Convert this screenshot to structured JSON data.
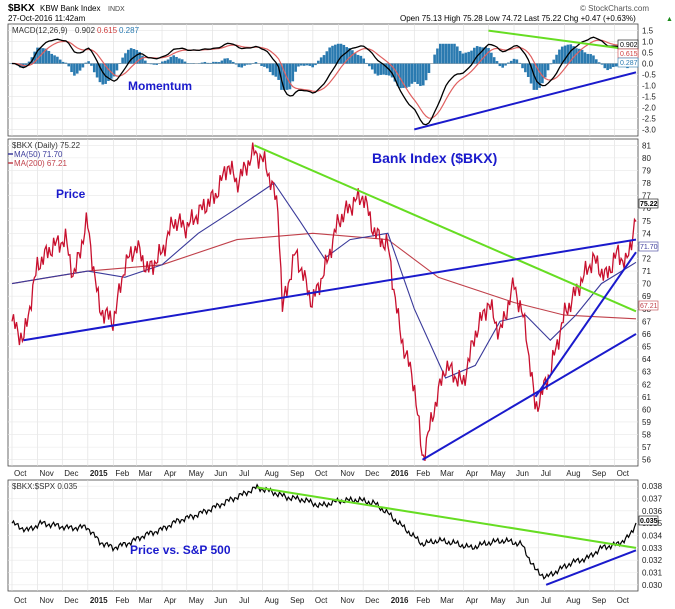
{
  "header": {
    "symbol": "$BKX",
    "name": "KBW Bank Index",
    "exchange": "INDX",
    "date": "27-Oct-2016 11:42am",
    "ohlc": "Open 75.13  High 75.28  Low 74.72  Last 75.22  Chg +0.47 (+0.63%)",
    "ohlc_up": "▲",
    "brand": "© StockCharts.com"
  },
  "macd_panel": {
    "legend": "MACD(12,26,9)",
    "legend_values": [
      "0.902",
      "0.615",
      "0.287"
    ],
    "annotation": "Momentum",
    "y_ticks": [
      "1.5",
      "1.0",
      "0.5",
      "0.0",
      "-0.5",
      "-1.0",
      "-1.5",
      "-2.0",
      "-2.5",
      "-3.0"
    ],
    "last_labels": [
      "0.902",
      "0.615",
      "0.287"
    ]
  },
  "price_panel": {
    "legend": "$BKX (Daily) 75.22",
    "ma50_legend": "MA(50) 71.70",
    "ma200_legend": "MA(200) 67.21",
    "title": "Bank Index ($BKX)",
    "annotation": "Price",
    "y_ticks": [
      "81",
      "80",
      "79",
      "78",
      "77",
      "76",
      "75",
      "74",
      "73",
      "72",
      "71",
      "70",
      "69",
      "68",
      "67",
      "66",
      "65",
      "64",
      "63",
      "62",
      "61",
      "60",
      "59",
      "58",
      "57",
      "56"
    ],
    "last_labels": [
      "75.22",
      "71.70",
      "67.21"
    ]
  },
  "ratio_panel": {
    "legend": "$BKX:$SPX 0.035",
    "annotation": "Price vs. S&P 500",
    "y_ticks": [
      "0.038",
      "0.037",
      "0.036",
      "0.035",
      "0.034",
      "0.033",
      "0.032",
      "0.031",
      "0.030"
    ],
    "last_label": "0.035"
  },
  "x_axis": {
    "ticks": [
      "Oct",
      "Nov",
      "Dec",
      "2015",
      "Feb",
      "Mar",
      "Apr",
      "May",
      "Jun",
      "Jul",
      "Aug",
      "Sep",
      "Oct",
      "Nov",
      "Dec",
      "2016",
      "Feb",
      "Mar",
      "Apr",
      "May",
      "Jun",
      "Jul",
      "Aug",
      "Sep",
      "Oct"
    ]
  },
  "colors": {
    "price": "#c8102e",
    "ma50": "#3a3a9a",
    "ma200": "#c0404a",
    "macd": "#000000",
    "signal": "#e06060",
    "histogram": "#2a7ab0",
    "trend_green": "#66dd22",
    "trend_blue": "#1a1acc",
    "title_blue": "#1a1acc"
  },
  "chart_data": [
    {
      "type": "line",
      "y_ticks_shown": [
        1.5,
        1.0,
        0.5,
        0.0,
        -0.5,
        -1.0,
        -1.5,
        -2.0,
        -2.5,
        -3.0
      ],
      "ylim": [
        -3.3,
        1.8
      ],
      "series": [
        {
          "name": "MACD(12,26,9)",
          "last": 0.902
        },
        {
          "name": "",
          "last": 0.615
        },
        {
          "name": "",
          "last": 0.287
        }
      ],
      "annotations": [
        "Momentum"
      ],
      "trendlines": [
        {
          "color": "green",
          "from": [
            "2016-05",
            1.5
          ],
          "to": [
            "2016-10-27",
            0.6
          ]
        },
        {
          "color": "blue",
          "from": [
            "2016-02",
            -3.0
          ],
          "to": [
            "2016-10-27",
            -0.4
          ]
        }
      ]
    },
    {
      "type": "line",
      "title": "Bank Index ($BKX)",
      "ylim": [
        55.5,
        81.5
      ],
      "series": [
        {
          "name": "$BKX (Daily)",
          "last": 75.22,
          "points": [
            [
              "2014-10-01",
              67.0
            ],
            [
              "2014-10-15",
              65.5
            ],
            [
              "2014-11-01",
              71.5
            ],
            [
              "2014-11-20",
              73.0
            ],
            [
              "2014-12-05",
              73.5
            ],
            [
              "2014-12-15",
              70.5
            ],
            [
              "2014-12-31",
              75.0
            ],
            [
              "2015-01-15",
              68.0
            ],
            [
              "2015-02-01",
              67.0
            ],
            [
              "2015-02-15",
              71.5
            ],
            [
              "2015-03-01",
              73.0
            ],
            [
              "2015-03-15",
              71.0
            ],
            [
              "2015-04-01",
              72.5
            ],
            [
              "2015-04-15",
              75.0
            ],
            [
              "2015-05-01",
              74.5
            ],
            [
              "2015-05-20",
              76.0
            ],
            [
              "2015-06-05",
              77.0
            ],
            [
              "2015-06-20",
              79.5
            ],
            [
              "2015-07-01",
              78.0
            ],
            [
              "2015-07-22",
              80.5
            ],
            [
              "2015-08-05",
              79.5
            ],
            [
              "2015-08-20",
              76.0
            ],
            [
              "2015-08-25",
              68.0
            ],
            [
              "2015-09-10",
              72.5
            ],
            [
              "2015-09-30",
              68.5
            ],
            [
              "2015-10-15",
              71.0
            ],
            [
              "2015-11-01",
              75.0
            ],
            [
              "2015-11-20",
              76.5
            ],
            [
              "2015-12-01",
              77.0
            ],
            [
              "2015-12-15",
              74.0
            ],
            [
              "2015-12-31",
              73.0
            ],
            [
              "2016-01-15",
              66.0
            ],
            [
              "2016-02-01",
              62.0
            ],
            [
              "2016-02-11",
              56.0
            ],
            [
              "2016-02-25",
              60.0
            ],
            [
              "2016-03-10",
              63.5
            ],
            [
              "2016-03-31",
              62.0
            ],
            [
              "2016-04-15",
              66.0
            ],
            [
              "2016-05-01",
              68.5
            ],
            [
              "2016-05-15",
              66.0
            ],
            [
              "2016-06-01",
              70.0
            ],
            [
              "2016-06-15",
              66.5
            ],
            [
              "2016-06-27",
              60.0
            ],
            [
              "2016-07-15",
              63.0
            ],
            [
              "2016-08-01",
              67.5
            ],
            [
              "2016-08-20",
              70.0
            ],
            [
              "2016-09-05",
              72.0
            ],
            [
              "2016-09-20",
              70.5
            ],
            [
              "2016-10-05",
              72.5
            ],
            [
              "2016-10-15",
              71.5
            ],
            [
              "2016-10-27",
              75.2
            ]
          ]
        },
        {
          "name": "MA(50)",
          "last": 71.7,
          "points": [
            [
              "2014-10-01",
              70.0
            ],
            [
              "2014-11-15",
              70.5
            ],
            [
              "2015-01-01",
              71.0
            ],
            [
              "2015-02-15",
              70.5
            ],
            [
              "2015-04-01",
              71.5
            ],
            [
              "2015-05-15",
              74.0
            ],
            [
              "2015-07-01",
              76.0
            ],
            [
              "2015-08-15",
              78.0
            ],
            [
              "2015-09-15",
              75.0
            ],
            [
              "2015-10-15",
              72.0
            ],
            [
              "2015-11-15",
              73.5
            ],
            [
              "2015-12-31",
              74.0
            ],
            [
              "2016-02-01",
              68.0
            ],
            [
              "2016-03-10",
              62.5
            ],
            [
              "2016-04-15",
              63.5
            ],
            [
              "2016-05-15",
              67.0
            ],
            [
              "2016-06-15",
              67.5
            ],
            [
              "2016-07-15",
              65.5
            ],
            [
              "2016-08-15",
              67.5
            ],
            [
              "2016-09-15",
              70.0
            ],
            [
              "2016-10-27",
              71.7
            ]
          ]
        },
        {
          "name": "MA(200)",
          "last": 67.21,
          "points": [
            [
              "2014-10-01",
              70.0
            ],
            [
              "2015-01-01",
              71.0
            ],
            [
              "2015-04-01",
              71.5
            ],
            [
              "2015-07-01",
              73.5
            ],
            [
              "2015-10-01",
              74.0
            ],
            [
              "2015-12-31",
              73.5
            ],
            [
              "2016-03-01",
              70.5
            ],
            [
              "2016-06-01",
              68.5
            ],
            [
              "2016-08-01",
              67.5
            ],
            [
              "2016-10-27",
              67.2
            ]
          ]
        }
      ],
      "annotations": [
        "Price",
        "Bank Index ($BKX)"
      ],
      "trendlines": [
        {
          "color": "green",
          "from": [
            "2015-07-22",
            81.0
          ],
          "to": [
            "2016-10-27",
            67.8
          ]
        },
        {
          "color": "blue",
          "from": [
            "2014-10-15",
            65.5
          ],
          "to": [
            "2016-10-27",
            73.5
          ]
        },
        {
          "color": "blue",
          "from": [
            "2016-02-11",
            56.0
          ],
          "to": [
            "2016-10-27",
            66.0
          ]
        },
        {
          "color": "blue",
          "from": [
            "2016-06-27",
            61.0
          ],
          "to": [
            "2016-10-27",
            72.5
          ]
        }
      ]
    },
    {
      "type": "line",
      "ylim": [
        0.0295,
        0.0385
      ],
      "series": [
        {
          "name": "$BKX:$SPX",
          "last": 0.035,
          "points": [
            [
              "2014-10-01",
              0.035
            ],
            [
              "2014-10-20",
              0.0344
            ],
            [
              "2014-11-05",
              0.035
            ],
            [
              "2014-11-25",
              0.0348
            ],
            [
              "2014-12-10",
              0.0346
            ],
            [
              "2014-12-31",
              0.0347
            ],
            [
              "2015-01-15",
              0.0335
            ],
            [
              "2015-02-01",
              0.033
            ],
            [
              "2015-02-20",
              0.0334
            ],
            [
              "2015-03-10",
              0.034
            ],
            [
              "2015-04-01",
              0.0345
            ],
            [
              "2015-04-20",
              0.0352
            ],
            [
              "2015-05-10",
              0.0356
            ],
            [
              "2015-06-01",
              0.0362
            ],
            [
              "2015-06-20",
              0.0368
            ],
            [
              "2015-07-10",
              0.0374
            ],
            [
              "2015-07-25",
              0.0379
            ],
            [
              "2015-08-10",
              0.0376
            ],
            [
              "2015-08-30",
              0.0371
            ],
            [
              "2015-09-20",
              0.0369
            ],
            [
              "2015-10-10",
              0.0364
            ],
            [
              "2015-11-01",
              0.0368
            ],
            [
              "2015-11-25",
              0.0369
            ],
            [
              "2015-12-15",
              0.0366
            ],
            [
              "2015-12-31",
              0.0358
            ],
            [
              "2016-01-20",
              0.0346
            ],
            [
              "2016-02-11",
              0.0333
            ],
            [
              "2016-03-01",
              0.0336
            ],
            [
              "2016-03-20",
              0.0334
            ],
            [
              "2016-04-10",
              0.033
            ],
            [
              "2016-04-30",
              0.0334
            ],
            [
              "2016-05-20",
              0.0336
            ],
            [
              "2016-06-10",
              0.0333
            ],
            [
              "2016-06-27",
              0.0312
            ],
            [
              "2016-07-10",
              0.0306
            ],
            [
              "2016-07-25",
              0.0312
            ],
            [
              "2016-08-10",
              0.0318
            ],
            [
              "2016-08-30",
              0.0322
            ],
            [
              "2016-09-15",
              0.033
            ],
            [
              "2016-10-05",
              0.0333
            ],
            [
              "2016-10-20",
              0.034
            ],
            [
              "2016-10-27",
              0.035
            ]
          ]
        }
      ],
      "annotations": [
        "Price vs. S&P 500"
      ],
      "trendlines": [
        {
          "color": "green",
          "from": [
            "2015-07-25",
            0.0379
          ],
          "to": [
            "2016-10-27",
            0.033
          ]
        },
        {
          "color": "blue",
          "from": [
            "2016-07-10",
            0.03
          ],
          "to": [
            "2016-10-27",
            0.0328
          ]
        }
      ]
    }
  ]
}
